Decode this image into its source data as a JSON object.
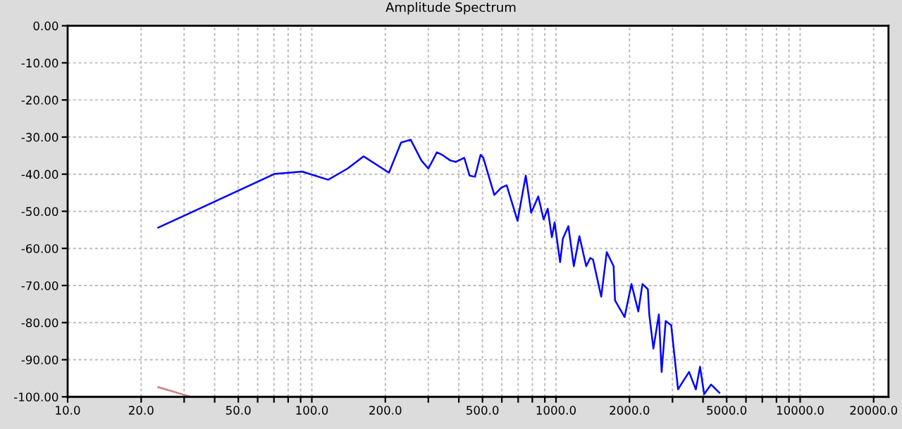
{
  "chart_data": {
    "type": "line",
    "title": "Amplitude Spectrum",
    "series": [
      {
        "color": "#0000ff",
        "x": [
          23.5,
          70.5,
          91.4,
          116.7,
          140,
          163,
          207,
          232,
          254,
          281,
          300,
          312,
          325,
          342,
          369,
          389,
          421,
          443,
          466,
          491,
          504,
          559,
          596,
          628,
          696,
          752,
          792,
          846,
          890,
          925,
          962,
          987,
          1040,
          1067,
          1124,
          1183,
          1247,
          1330,
          1381,
          1418,
          1532,
          1614,
          1722,
          1745,
          1910,
          2038,
          2174,
          2260,
          2379,
          2410,
          2506,
          2638,
          2708,
          2814,
          2964,
          3162,
          3330,
          3508,
          3740,
          3890,
          4045,
          4317,
          4670
        ],
        "values": [
          -54.4,
          -39.9,
          -39.3,
          -41.5,
          -38.5,
          -35.2,
          -39.6,
          -31.5,
          -30.7,
          -36.3,
          -38.5,
          -36.4,
          -34.1,
          -34.8,
          -36.3,
          -36.7,
          -35.6,
          -40.4,
          -40.7,
          -34.8,
          -35.6,
          -45.6,
          -43.7,
          -43,
          -52.6,
          -40.4,
          -50.4,
          -46,
          -52.2,
          -49.3,
          -57,
          -53,
          -63.7,
          -57.4,
          -54,
          -64.8,
          -56.7,
          -64.8,
          -62.6,
          -63,
          -73,
          -61,
          -64.8,
          -74,
          -78.5,
          -69.6,
          -77,
          -69.6,
          -71,
          -77.8,
          -87,
          -77.8,
          -93.3,
          -79.6,
          -80.7,
          -98,
          -95.6,
          -93.3,
          -98,
          -91.9,
          -99.3,
          -96.7,
          -98.9
        ]
      },
      {
        "color": "#d08080",
        "x": [
          23.5,
          32
        ],
        "values": [
          -97.4,
          -100
        ]
      }
    ],
    "log": "x",
    "xlim": [
      10,
      23000
    ],
    "ylim": [
      -100,
      0
    ],
    "xticks": [
      {
        "value": 10,
        "label": "10.0"
      },
      {
        "value": 20,
        "label": "20.0"
      },
      {
        "value": 30,
        "label": null
      },
      {
        "value": 40,
        "label": null
      },
      {
        "value": 50,
        "label": "50.0"
      },
      {
        "value": 60,
        "label": null
      },
      {
        "value": 70,
        "label": null
      },
      {
        "value": 80,
        "label": null
      },
      {
        "value": 90,
        "label": null
      },
      {
        "value": 100,
        "label": "100.0"
      },
      {
        "value": 200,
        "label": "200.0"
      },
      {
        "value": 300,
        "label": null
      },
      {
        "value": 400,
        "label": null
      },
      {
        "value": 500,
        "label": "500.0"
      },
      {
        "value": 600,
        "label": null
      },
      {
        "value": 700,
        "label": null
      },
      {
        "value": 800,
        "label": null
      },
      {
        "value": 900,
        "label": null
      },
      {
        "value": 1000,
        "label": "1000.0"
      },
      {
        "value": 2000,
        "label": "2000.0"
      },
      {
        "value": 3000,
        "label": null
      },
      {
        "value": 4000,
        "label": null
      },
      {
        "value": 5000,
        "label": "5000.0"
      },
      {
        "value": 6000,
        "label": null
      },
      {
        "value": 7000,
        "label": null
      },
      {
        "value": 8000,
        "label": null
      },
      {
        "value": 9000,
        "label": null
      },
      {
        "value": 10000,
        "label": "10000.0"
      },
      {
        "value": 20000,
        "label": "20000.0"
      }
    ],
    "yticks": [
      {
        "value": 0,
        "label": "0.00"
      },
      {
        "value": -10,
        "label": "-10.00"
      },
      {
        "value": -20,
        "label": "-20.00"
      },
      {
        "value": -30,
        "label": "-30.00"
      },
      {
        "value": -40,
        "label": "-40.00"
      },
      {
        "value": -50,
        "label": "-50.00"
      },
      {
        "value": -60,
        "label": "-60.00"
      },
      {
        "value": -70,
        "label": "-70.00"
      },
      {
        "value": -80,
        "label": "-80.00"
      },
      {
        "value": -90,
        "label": "-90.00"
      },
      {
        "value": -100,
        "label": "-100.00"
      }
    ],
    "grid": true,
    "line_style": "solid"
  }
}
